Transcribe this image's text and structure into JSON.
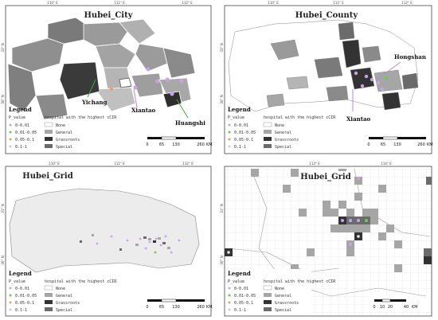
{
  "panels": [
    {
      "title": "Hubei_City",
      "top_ticks": [
        "110° E",
        "111° E",
        "112° E"
      ],
      "side_ticks": [
        "33° N",
        "30° N"
      ],
      "places": [
        "Yichang",
        "Xiantao",
        "Huangshi"
      ],
      "scale_ticks": [
        "0",
        "65",
        "130",
        "260"
      ],
      "scale_unit": "KM"
    },
    {
      "title": "Hubei_County",
      "top_ticks": [
        "110° E",
        "111° E",
        "112° E"
      ],
      "side_ticks": [
        "33° N",
        "30° N"
      ],
      "places": [
        "Hongshan",
        "Xiantao"
      ],
      "scale_ticks": [
        "0",
        "65",
        "130",
        "260"
      ],
      "scale_unit": "KM"
    },
    {
      "title": "Hubei_Grid",
      "top_ticks": [
        "110° E",
        "111° E",
        "112° E"
      ],
      "side_ticks": [
        "31° N",
        "30° N"
      ],
      "places": [],
      "scale_ticks": [
        "0",
        "65",
        "130",
        "260"
      ],
      "scale_unit": "KM"
    },
    {
      "title": "Hubei_Grid",
      "top_ticks": [
        "113° E",
        "114° E"
      ],
      "side_ticks": [
        "31° N",
        "30° N"
      ],
      "places": [],
      "scale_ticks": [
        "0",
        "10",
        "20",
        "40"
      ],
      "scale_unit": "KM"
    }
  ],
  "legend": {
    "title": "Legend",
    "p_header": "P_value",
    "h_header": "hospital with the highest cCIR",
    "p_items": [
      "0-0.01",
      "0.01-0.05",
      "0.05-0.1",
      "0.1-1"
    ],
    "h_items": [
      "None",
      "General",
      "Grassroots",
      "Special"
    ]
  },
  "colors": {
    "p_0_001": "#c9a3e6",
    "p_001_005": "#66cc55",
    "p_005_01": "#f0a050",
    "p_01_1": "#cccccc",
    "none": "#ffffff",
    "general": "#a6a6a6",
    "grassroots": "#333333",
    "special": "#6b6b6b",
    "arrow": "#3aaa3a",
    "arrow_purple": "#b48ad8"
  }
}
